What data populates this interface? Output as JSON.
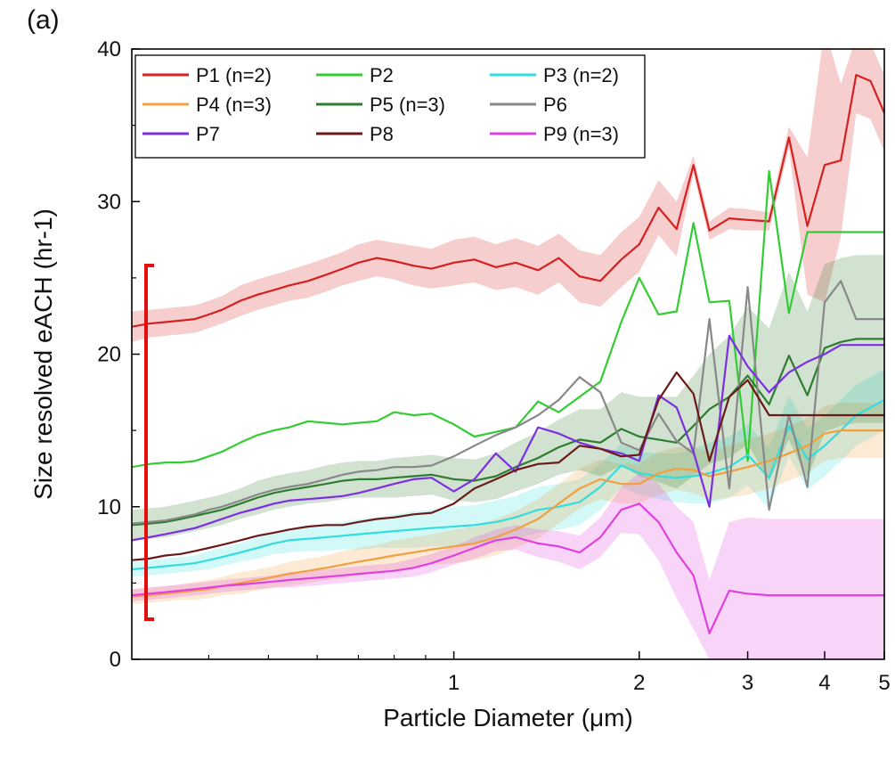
{
  "panel_label": "(a)",
  "chart_data": {
    "type": "line",
    "xlabel": "Particle Diameter (μm)",
    "ylabel": "Size resolved eACH (hr-1)",
    "x_scale": "log",
    "xlim": [
      0.3,
      5
    ],
    "ylim": [
      0,
      40
    ],
    "xticks": [
      1,
      2,
      3,
      4,
      5
    ],
    "yticks": [
      0,
      10,
      20,
      30,
      40
    ],
    "legend_position": "top",
    "x": [
      0.3,
      0.32,
      0.34,
      0.36,
      0.38,
      0.4,
      0.42,
      0.45,
      0.48,
      0.51,
      0.54,
      0.58,
      0.62,
      0.66,
      0.7,
      0.75,
      0.8,
      0.86,
      0.92,
      1.0,
      1.08,
      1.17,
      1.26,
      1.37,
      1.48,
      1.6,
      1.73,
      1.87,
      2.0,
      2.15,
      2.3,
      2.45,
      2.6,
      2.8,
      3.0,
      3.25,
      3.5,
      3.75,
      4.0,
      4.25,
      4.5,
      4.75,
      5.0
    ],
    "series": [
      {
        "name": "P1 (n=2)",
        "color": "#d62020",
        "values": [
          21.8,
          22.0,
          22.1,
          22.2,
          22.3,
          22.6,
          22.9,
          23.5,
          23.9,
          24.2,
          24.5,
          24.8,
          25.2,
          25.6,
          26.0,
          26.3,
          26.1,
          25.8,
          25.6,
          26.0,
          26.2,
          25.7,
          26.0,
          25.5,
          26.3,
          25.1,
          24.8,
          26.2,
          27.2,
          29.6,
          28.2,
          32.4,
          28.1,
          28.9,
          28.8,
          28.7,
          34.2,
          28.4,
          32.4,
          32.7,
          38.3,
          37.9,
          35.8
        ],
        "band": [
          1.0,
          0.9,
          0.9,
          0.9,
          0.9,
          0.9,
          0.9,
          1.0,
          1.0,
          1.0,
          1.0,
          1.1,
          1.1,
          1.1,
          1.2,
          1.2,
          1.2,
          1.3,
          1.3,
          1.5,
          1.5,
          1.5,
          1.6,
          1.6,
          1.6,
          1.7,
          1.7,
          1.8,
          1.8,
          1.8,
          1.8,
          0.6,
          0.6,
          0.7,
          0.7,
          0.6,
          0.7,
          4.5,
          9.0,
          5.0,
          2.5,
          2.5,
          2.5
        ]
      },
      {
        "name": "P2",
        "color": "#33cc33",
        "values": [
          12.6,
          12.8,
          12.9,
          12.9,
          13.0,
          13.3,
          13.6,
          14.2,
          14.7,
          15.0,
          15.2,
          15.6,
          15.5,
          15.4,
          15.5,
          15.6,
          16.2,
          16.0,
          16.1,
          15.4,
          14.6,
          14.9,
          15.2,
          16.9,
          16.2,
          17.2,
          18.2,
          22.1,
          25.0,
          22.6,
          22.8,
          28.6,
          23.4,
          23.5,
          13.0,
          32.0,
          22.7,
          28.0,
          28.0,
          28.0,
          28.0,
          28.0,
          28.0
        ],
        "band": null
      },
      {
        "name": "P3 (n=2)",
        "color": "#33dddd",
        "values": [
          5.9,
          6.0,
          6.1,
          6.2,
          6.3,
          6.5,
          6.7,
          7.0,
          7.3,
          7.6,
          7.8,
          7.9,
          8.0,
          8.1,
          8.2,
          8.3,
          8.4,
          8.5,
          8.6,
          8.7,
          8.8,
          9.0,
          9.3,
          9.8,
          10.0,
          10.3,
          11.3,
          12.7,
          12.2,
          12.0,
          11.9,
          12.0,
          12.2,
          12.6,
          13.4,
          11.9,
          15.3,
          13.1,
          14.0,
          15.0,
          16.0,
          16.5,
          17.0
        ],
        "band": [
          0.5,
          0.5,
          0.5,
          0.5,
          0.5,
          0.6,
          0.6,
          0.6,
          0.7,
          0.7,
          0.8,
          0.8,
          0.9,
          0.9,
          1.0,
          1.0,
          1.1,
          1.2,
          1.2,
          1.3,
          1.3,
          1.4,
          1.4,
          1.5,
          1.5,
          1.5,
          1.5,
          1.4,
          1.4,
          1.5,
          1.6,
          1.8,
          2.0,
          2.0,
          2.0,
          2.0,
          2.0,
          2.0,
          2.0,
          2.0,
          2.0,
          2.0,
          2.0
        ]
      },
      {
        "name": "P4 (n=3)",
        "color": "#f0a040",
        "values": [
          4.1,
          4.2,
          4.3,
          4.4,
          4.5,
          4.6,
          4.8,
          5.0,
          5.2,
          5.4,
          5.6,
          5.8,
          6.0,
          6.2,
          6.4,
          6.6,
          6.8,
          7.0,
          7.2,
          7.4,
          7.6,
          8.0,
          8.5,
          9.2,
          10.2,
          11.2,
          11.8,
          11.5,
          11.5,
          12.2,
          12.5,
          12.4,
          12.0,
          12.3,
          12.6,
          13.0,
          13.5,
          14.0,
          14.8,
          15.0,
          15.0,
          15.0,
          15.0
        ],
        "band": [
          0.5,
          0.5,
          0.5,
          0.5,
          0.6,
          0.6,
          0.6,
          0.7,
          0.7,
          0.7,
          0.8,
          0.8,
          0.8,
          0.9,
          0.9,
          0.9,
          1.0,
          1.0,
          1.0,
          1.1,
          1.1,
          1.2,
          1.2,
          1.3,
          1.3,
          1.3,
          1.3,
          1.3,
          1.3,
          1.4,
          1.4,
          1.5,
          1.6,
          1.7,
          1.8,
          1.8,
          1.8,
          1.8,
          1.8,
          1.8,
          1.8,
          1.8,
          1.8
        ]
      },
      {
        "name": "P5 (n=3)",
        "color": "#2e7d2e",
        "values": [
          8.8,
          8.9,
          9.0,
          9.2,
          9.4,
          9.6,
          9.8,
          10.2,
          10.6,
          10.9,
          11.1,
          11.3,
          11.5,
          11.7,
          11.8,
          11.8,
          11.9,
          12.0,
          12.1,
          11.8,
          11.7,
          12.0,
          12.6,
          13.2,
          13.9,
          14.4,
          14.2,
          15.1,
          14.6,
          14.4,
          14.2,
          15.3,
          16.4,
          17.2,
          18.6,
          16.7,
          19.9,
          17.3,
          20.4,
          20.8,
          21.0,
          21.0,
          21.0
        ],
        "band": [
          1.0,
          1.0,
          1.0,
          1.0,
          1.0,
          1.0,
          1.0,
          1.0,
          1.1,
          1.1,
          1.1,
          1.1,
          1.2,
          1.2,
          1.2,
          1.2,
          1.3,
          1.3,
          1.3,
          1.4,
          1.4,
          1.5,
          1.6,
          1.7,
          1.8,
          2.0,
          2.2,
          2.4,
          2.6,
          2.8,
          3.0,
          3.3,
          3.6,
          4.0,
          4.5,
          5.0,
          5.5,
          5.5,
          5.5,
          5.5,
          5.5,
          5.5,
          5.5
        ]
      },
      {
        "name": "P6",
        "color": "#888888",
        "values": [
          8.9,
          9.0,
          9.1,
          9.3,
          9.5,
          9.8,
          10.0,
          10.4,
          10.8,
          11.1,
          11.3,
          11.5,
          11.8,
          12.1,
          12.3,
          12.4,
          12.6,
          12.6,
          12.7,
          13.3,
          14.0,
          14.7,
          15.2,
          16.0,
          17.0,
          18.5,
          17.5,
          14.2,
          13.7,
          16.1,
          14.3,
          13.5,
          22.3,
          11.2,
          24.4,
          9.8,
          16.0,
          11.3,
          23.4,
          24.8,
          22.3,
          22.3,
          22.3
        ],
        "band": null
      },
      {
        "name": "P7",
        "color": "#7b2fe0",
        "values": [
          7.8,
          8.0,
          8.2,
          8.4,
          8.6,
          8.9,
          9.2,
          9.6,
          9.9,
          10.2,
          10.4,
          10.5,
          10.6,
          10.7,
          10.9,
          11.2,
          11.5,
          11.8,
          11.9,
          11.0,
          11.8,
          13.5,
          12.3,
          15.2,
          14.8,
          14.2,
          13.8,
          13.5,
          13.0,
          17.3,
          16.5,
          13.6,
          10.0,
          21.2,
          19.2,
          17.5,
          18.8,
          19.5,
          20.0,
          20.6,
          20.6,
          20.6,
          20.6
        ],
        "band": null
      },
      {
        "name": "P8",
        "color": "#6b1a1a",
        "values": [
          6.5,
          6.6,
          6.8,
          6.9,
          7.1,
          7.3,
          7.5,
          7.8,
          8.1,
          8.3,
          8.5,
          8.7,
          8.8,
          8.8,
          9.0,
          9.2,
          9.3,
          9.5,
          9.6,
          10.2,
          11.2,
          11.8,
          12.4,
          12.8,
          12.9,
          14.0,
          13.8,
          13.3,
          13.4,
          17.0,
          18.8,
          17.4,
          13.0,
          17.2,
          18.3,
          16.0,
          16.0,
          16.0,
          16.0,
          16.0,
          16.0,
          16.0,
          16.0
        ],
        "band": null
      },
      {
        "name": "P9 (n=3)",
        "color": "#e040e0",
        "values": [
          4.2,
          4.3,
          4.4,
          4.5,
          4.6,
          4.7,
          4.8,
          4.9,
          5.0,
          5.1,
          5.2,
          5.3,
          5.4,
          5.5,
          5.6,
          5.7,
          5.8,
          6.0,
          6.3,
          6.8,
          7.3,
          7.8,
          8.0,
          7.6,
          7.4,
          7.0,
          8.0,
          9.8,
          10.2,
          9.0,
          7.0,
          5.5,
          1.7,
          4.5,
          4.3,
          4.2,
          4.2,
          4.2,
          4.2,
          4.2,
          4.2,
          4.2,
          4.2
        ],
        "band": [
          0.4,
          0.4,
          0.4,
          0.4,
          0.4,
          0.4,
          0.4,
          0.4,
          0.4,
          0.4,
          0.5,
          0.5,
          0.5,
          0.5,
          0.5,
          0.5,
          0.5,
          0.6,
          0.6,
          0.6,
          0.7,
          0.7,
          0.8,
          0.9,
          1.0,
          1.1,
          1.3,
          1.5,
          2.0,
          2.5,
          3.0,
          3.5,
          3.5,
          4.5,
          5.0,
          5.0,
          5.0,
          5.0,
          5.0,
          5.0,
          5.0,
          5.0,
          5.0
        ]
      }
    ]
  }
}
